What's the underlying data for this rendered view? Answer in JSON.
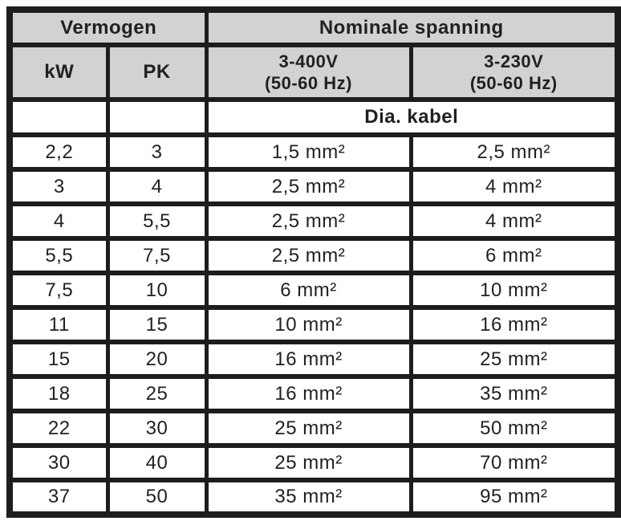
{
  "table": {
    "header": {
      "group_power": "Vermogen",
      "group_voltage": "Nominale spanning",
      "col_kw": "kW",
      "col_pk": "PK",
      "col_400v": "3-400V\n(50-60 Hz)",
      "col_230v": "3-230V\n(50-60 Hz)",
      "subheader": "Dia. kabel"
    },
    "rows": [
      [
        "2,2",
        "3",
        "1,5 mm²",
        "2,5 mm²"
      ],
      [
        "3",
        "4",
        "2,5 mm²",
        "4 mm²"
      ],
      [
        "4",
        "5,5",
        "2,5 mm²",
        "4 mm²"
      ],
      [
        "5,5",
        "7,5",
        "2,5 mm²",
        "6 mm²"
      ],
      [
        "7,5",
        "10",
        "6 mm²",
        "10 mm²"
      ],
      [
        "11",
        "15",
        "10 mm²",
        "16 mm²"
      ],
      [
        "15",
        "20",
        "16 mm²",
        "25 mm²"
      ],
      [
        "18",
        "25",
        "16 mm²",
        "35 mm²"
      ],
      [
        "22",
        "30",
        "25 mm²",
        "50 mm²"
      ],
      [
        "30",
        "40",
        "25 mm²",
        "70 mm²"
      ],
      [
        "37",
        "50",
        "35 mm²",
        "95 mm²"
      ]
    ],
    "colors": {
      "header_bg": "#d2d2d2",
      "border": "#1d1d1b",
      "text": "#231f20",
      "body_bg": "#ffffff"
    }
  }
}
